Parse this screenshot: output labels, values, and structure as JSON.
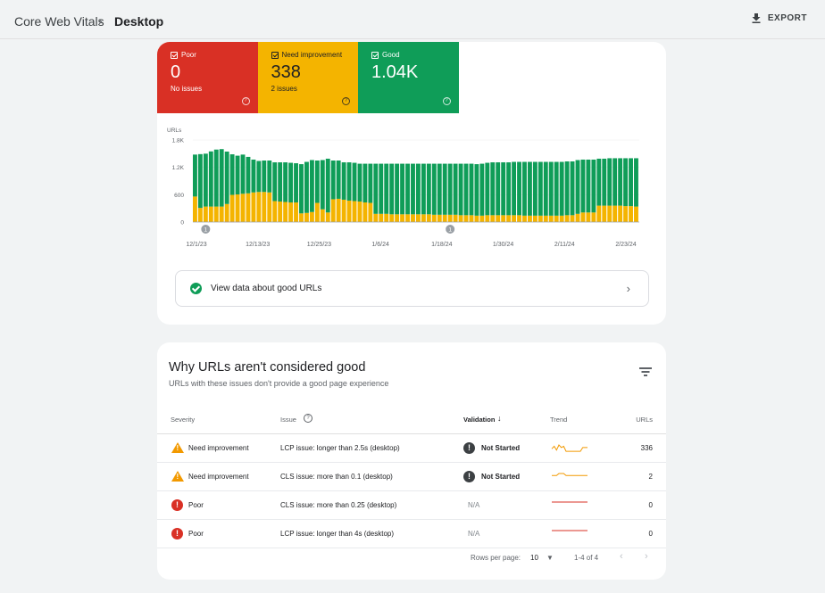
{
  "breadcrumb": {
    "root": "Core Web Vitals",
    "separator": "›",
    "current": "Desktop"
  },
  "toolbar": {
    "export_label": "EXPORT"
  },
  "summary": {
    "poor": {
      "label": "Poor",
      "value": "0",
      "sub": "No issues",
      "color": "#d93025"
    },
    "need_improvement": {
      "label": "Need improvement",
      "value": "338",
      "sub": "2 issues",
      "color": "#f4b400"
    },
    "good": {
      "label": "Good",
      "value": "1.04K",
      "sub": "",
      "color": "#0f9d58"
    }
  },
  "chart_data": {
    "type": "bar",
    "stacked": true,
    "ylabel": "URLs",
    "y_ticks": [
      "0",
      "600",
      "1.2K",
      "1.8K"
    ],
    "ylim": [
      0,
      1800
    ],
    "x_tick_labels": [
      "12/1/23",
      "12/13/23",
      "12/25/23",
      "1/6/24",
      "1/18/24",
      "1/30/24",
      "2/11/24",
      "2/23/24"
    ],
    "annotation_markers": [
      {
        "label": "1",
        "day_index": 2
      },
      {
        "label": "1",
        "day_index": 48
      }
    ],
    "series": [
      {
        "name": "Poor",
        "color": "#d93025",
        "values": [
          0,
          0,
          0,
          0,
          0,
          0,
          6,
          6,
          6,
          0,
          0,
          0,
          0,
          0,
          0,
          0,
          0,
          0,
          0,
          0,
          0,
          0,
          0,
          0,
          0,
          0,
          0,
          0,
          0,
          0,
          0,
          0,
          0,
          0,
          0,
          0,
          0,
          0,
          0,
          0,
          0,
          0,
          0,
          0,
          0,
          0,
          0,
          0,
          0,
          0,
          0,
          0,
          0,
          0,
          0,
          0,
          0,
          0,
          0,
          0,
          0,
          0,
          0,
          0,
          0,
          0,
          0,
          0,
          0,
          0,
          0,
          0,
          0,
          0,
          0,
          0,
          0,
          0,
          0,
          0,
          0,
          0,
          0,
          0
        ]
      },
      {
        "name": "Need improvement",
        "color": "#f4b400",
        "values": [
          560,
          310,
          340,
          340,
          340,
          340,
          390,
          590,
          600,
          620,
          630,
          650,
          660,
          660,
          650,
          460,
          450,
          440,
          430,
          430,
          190,
          200,
          220,
          420,
          280,
          210,
          500,
          510,
          490,
          470,
          460,
          450,
          430,
          420,
          180,
          180,
          180,
          170,
          170,
          170,
          170,
          170,
          170,
          170,
          170,
          160,
          160,
          160,
          160,
          160,
          150,
          150,
          150,
          140,
          140,
          150,
          150,
          150,
          150,
          150,
          150,
          150,
          140,
          140,
          140,
          140,
          140,
          140,
          140,
          140,
          150,
          150,
          180,
          210,
          210,
          210,
          360,
          360,
          360,
          360,
          360,
          350,
          350,
          340
        ]
      },
      {
        "name": "Good",
        "color": "#0f9d58",
        "values": [
          920,
          1180,
          1160,
          1210,
          1250,
          1260,
          1150,
          890,
          850,
          860,
          800,
          720,
          680,
          690,
          700,
          850,
          860,
          870,
          870,
          860,
          1080,
          1120,
          1140,
          930,
          1080,
          1180,
          850,
          840,
          820,
          840,
          840,
          830,
          850,
          860,
          1100,
          1100,
          1100,
          1110,
          1110,
          1110,
          1110,
          1110,
          1110,
          1110,
          1110,
          1120,
          1120,
          1120,
          1120,
          1120,
          1130,
          1130,
          1130,
          1130,
          1140,
          1150,
          1160,
          1160,
          1160,
          1160,
          1170,
          1170,
          1180,
          1180,
          1180,
          1180,
          1180,
          1180,
          1180,
          1180,
          1180,
          1180,
          1180,
          1160,
          1160,
          1160,
          1030,
          1030,
          1040,
          1040,
          1040,
          1050,
          1050,
          1060
        ]
      }
    ]
  },
  "good_urls_link": {
    "label": "View data about good URLs"
  },
  "issues": {
    "title": "Why URLs aren't considered good",
    "subtitle": "URLs with these issues don't provide a good page experience",
    "columns": {
      "severity": "Severity",
      "issue": "Issue",
      "validation": "Validation",
      "trend": "Trend",
      "urls": "URLs"
    },
    "rows": [
      {
        "severity": "Need improvement",
        "issue": "LCP issue: longer than 2.5s (desktop)",
        "validation": "Not Started",
        "urls": "336",
        "trend_color": "#f29900",
        "trend_points": [
          4,
          6,
          3,
          7,
          5,
          6,
          2,
          2,
          2,
          2,
          2,
          2,
          2,
          5,
          5,
          5
        ]
      },
      {
        "severity": "Need improvement",
        "issue": "CLS issue: more than 0.1 (desktop)",
        "validation": "Not Started",
        "urls": "2",
        "trend_color": "#f29900",
        "trend_points": [
          1,
          1,
          1,
          1.3,
          1.3,
          1.3,
          1,
          1,
          1,
          1,
          1,
          1,
          1,
          1,
          1,
          1
        ]
      },
      {
        "severity": "Poor",
        "issue": "CLS issue: more than 0.25 (desktop)",
        "validation": "N/A",
        "urls": "0",
        "trend_color": "#d93025",
        "trend_points": [
          1,
          1,
          1,
          1,
          1,
          1,
          1,
          1,
          1,
          1,
          1,
          1,
          1,
          1,
          1,
          1
        ]
      },
      {
        "severity": "Poor",
        "issue": "LCP issue: longer than 4s (desktop)",
        "validation": "N/A",
        "urls": "0",
        "trend_color": "#d93025",
        "trend_points": [
          1,
          1,
          1,
          1,
          1,
          1,
          1,
          1,
          1,
          1,
          1,
          1,
          1,
          1,
          1,
          1
        ]
      }
    ]
  },
  "pagination": {
    "rows_label": "Rows per page:",
    "rows_value": "10",
    "range": "1-4 of 4"
  }
}
